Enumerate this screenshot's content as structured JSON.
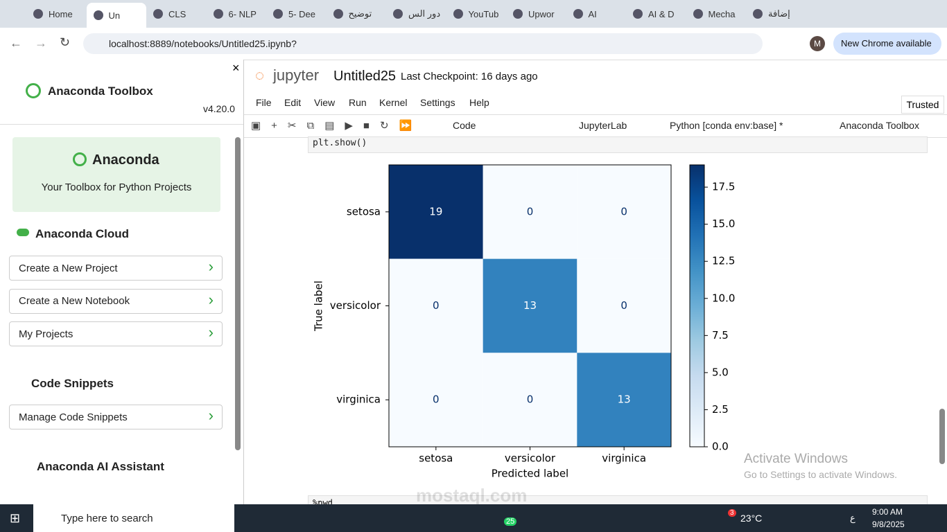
{
  "browser": {
    "tabs": [
      "Home",
      "Un",
      "CLS",
      "6- NLP",
      "5- Dee",
      "توضيح",
      "دور الس",
      "YouTub",
      "Upwor",
      "AI",
      "AI & D",
      "Mecha",
      "إضافة"
    ],
    "url": "localhost:8889/notebooks/Untitled25.ipynb?",
    "profile": "M",
    "update": "New Chrome available"
  },
  "sidebar": {
    "title": "Anaconda Toolbox",
    "version": "v4.20.0",
    "card_title": "Anaconda",
    "card_subtitle": "Your Toolbox for Python Projects",
    "cloud": "Anaconda Cloud",
    "cloud_items": [
      "Create a New Project",
      "Create a New Notebook",
      "My Projects"
    ],
    "snippets": "Code Snippets",
    "snippet_items": [
      "Manage Code Snippets"
    ],
    "assistant": "Anaconda AI Assistant"
  },
  "jupyter": {
    "logo": "jupyter",
    "name": "Untitled25",
    "checkpoint": "Last Checkpoint: 16 days ago",
    "trusted": "Trusted",
    "menu": [
      "File",
      "Edit",
      "View",
      "Run",
      "Kernel",
      "Settings",
      "Help"
    ],
    "cell_type": "Code",
    "lab": "JupyterLab",
    "kernel": "Python [conda env:base] *",
    "toolbox": "Anaconda Toolbox",
    "code": "plt.show()",
    "next_code": "%pwd",
    "activate_title": "Activate Windows",
    "activate_text": "Go to Settings to activate Windows."
  },
  "chart_data": {
    "type": "heatmap",
    "x_categories": [
      "setosa",
      "versicolor",
      "virginica"
    ],
    "y_categories": [
      "setosa",
      "versicolor",
      "virginica"
    ],
    "values": [
      [
        19,
        0,
        0
      ],
      [
        0,
        13,
        0
      ],
      [
        0,
        0,
        13
      ]
    ],
    "xlabel": "Predicted label",
    "ylabel": "True label",
    "colormap": "Blues",
    "zlim": [
      0,
      19
    ],
    "zticks": [
      {
        "value": 0,
        "label": "0.0"
      },
      {
        "value": 2.5,
        "label": "2.5"
      },
      {
        "value": 5,
        "label": "5.0"
      },
      {
        "value": 7.5,
        "label": "7.5"
      },
      {
        "value": 10,
        "label": "10.0"
      },
      {
        "value": 12.5,
        "label": "12.5"
      },
      {
        "value": 15,
        "label": "15.0"
      },
      {
        "value": 17.5,
        "label": "17.5"
      }
    ]
  },
  "taskbar": {
    "search": "Type here to search",
    "whatsapp_badge": "25",
    "weather_badge": "3",
    "temperature": "23°C",
    "lang": "ع",
    "time": "9:00 AM",
    "date": "9/8/2025"
  },
  "watermark": "mostaql.com"
}
